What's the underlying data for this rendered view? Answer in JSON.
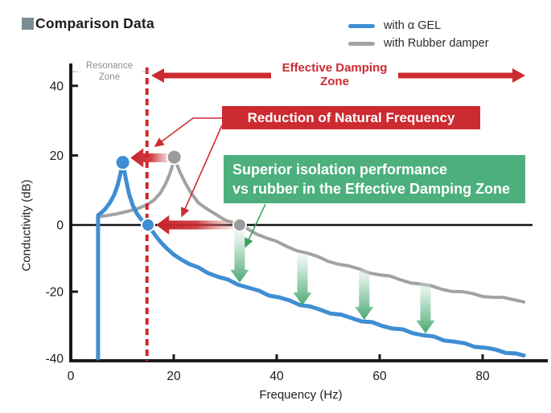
{
  "title": {
    "square_icon": "square-bullet-icon",
    "text": "Comparison Data"
  },
  "legend": {
    "items": [
      {
        "label": "with α GEL",
        "color": "#3e8ed3"
      },
      {
        "label": "with Rubber damper",
        "color": "#a2a2a2"
      }
    ]
  },
  "colors": {
    "red": "#cc2b31",
    "dashed_red": "#d0262c",
    "green_badge": "#4caf7c",
    "green_arrow_dark": "#4aa86e",
    "green_leader": "#3aa463",
    "blue": "#3e8ed3",
    "gray": "#a2a2a2",
    "gray_dot": "#9b9b9b",
    "title_square": "#7b8d94",
    "axis": "#1a1a1a"
  },
  "annotations": {
    "resonance_line1": "Resonance",
    "resonance_line2": "Zone",
    "resonance_arrow_left": "←",
    "resonance_arrow_right": "→",
    "effective_line1": "Effective Damping",
    "effective_line2": "Zone",
    "red_badge": "Reduction of Natural Frequency",
    "green_badge_line1": "Superior isolation performance",
    "green_badge_line2": "vs rubber in the Effective Damping Zone"
  },
  "chart_data": {
    "type": "line",
    "title": "Comparison Data",
    "xlabel": "Frequency (Hz)",
    "ylabel": "Conductivity (dB)",
    "xlim": [
      0,
      89
    ],
    "ylim": [
      -40,
      44
    ],
    "x_ticks": [
      0,
      20,
      40,
      60,
      80
    ],
    "y_ticks": [
      40,
      20,
      0,
      -20,
      -40
    ],
    "grid": false,
    "legend_position": "top-right",
    "resonance_boundary_hz": 14.8,
    "series": [
      {
        "name": "with α GEL",
        "color": "#3e8ed3",
        "points": [
          [
            5.3,
            -40
          ],
          [
            5.3,
            2.8
          ],
          [
            6,
            3.6
          ],
          [
            6.8,
            4.8
          ],
          [
            7.6,
            6.4
          ],
          [
            8.4,
            8.6
          ],
          [
            9.1,
            11.4
          ],
          [
            9.6,
            14.4
          ],
          [
            9.9,
            16.6
          ],
          [
            10.1,
            18
          ],
          [
            10.35,
            16
          ],
          [
            10.8,
            12.5
          ],
          [
            11.3,
            9
          ],
          [
            12,
            5.8
          ],
          [
            12.8,
            3.4
          ],
          [
            13.6,
            1.7
          ],
          [
            14.4,
            0.7
          ],
          [
            15,
            0
          ],
          [
            15.7,
            -1.5
          ],
          [
            16.5,
            -3.3
          ],
          [
            17.5,
            -5.2
          ],
          [
            18.7,
            -7.1
          ],
          [
            20,
            -8.9
          ],
          [
            21.5,
            -10.4
          ],
          [
            23,
            -11.7
          ],
          [
            24.8,
            -13
          ],
          [
            26.6,
            -14.2
          ],
          [
            28.5,
            -15.4
          ],
          [
            30.5,
            -16.6
          ],
          [
            32.5,
            -17.7
          ],
          [
            34.5,
            -18.8
          ],
          [
            36.5,
            -19.9
          ],
          [
            38.5,
            -20.9
          ],
          [
            40.5,
            -21.8
          ],
          [
            42.5,
            -22.8
          ],
          [
            44.5,
            -23.7
          ],
          [
            46.5,
            -24.6
          ],
          [
            48.5,
            -25.5
          ],
          [
            50.5,
            -26.3
          ],
          [
            52.5,
            -27.1
          ],
          [
            54.5,
            -27.9
          ],
          [
            56.5,
            -28.7
          ],
          [
            58.5,
            -29.4
          ],
          [
            60.5,
            -30.2
          ],
          [
            62.5,
            -30.9
          ],
          [
            64.5,
            -31.6
          ],
          [
            66.5,
            -32.3
          ],
          [
            68.5,
            -33
          ],
          [
            70.5,
            -33.7
          ],
          [
            72.5,
            -34.4
          ],
          [
            74.5,
            -35
          ],
          [
            76.5,
            -35.7
          ],
          [
            78.5,
            -36.3
          ],
          [
            80.5,
            -36.9
          ],
          [
            82.5,
            -37.5
          ],
          [
            84.5,
            -38.1
          ],
          [
            86.5,
            -38.7
          ],
          [
            88,
            -39.2
          ]
        ]
      },
      {
        "name": "with Rubber damper",
        "color": "#a2a2a2",
        "points": [
          [
            5.4,
            2.4
          ],
          [
            7,
            2.7
          ],
          [
            9,
            3.2
          ],
          [
            11,
            3.9
          ],
          [
            13,
            4.7
          ],
          [
            14.8,
            5.8
          ],
          [
            16.2,
            7.2
          ],
          [
            17.4,
            9.2
          ],
          [
            18.4,
            11.8
          ],
          [
            19.2,
            14.6
          ],
          [
            19.8,
            17.2
          ],
          [
            20.1,
            19.5
          ],
          [
            20.5,
            17.8
          ],
          [
            21.2,
            15.2
          ],
          [
            22.2,
            12.2
          ],
          [
            23.4,
            9.2
          ],
          [
            24.8,
            6.6
          ],
          [
            26.4,
            4.5
          ],
          [
            28,
            3
          ],
          [
            30,
            1.6
          ],
          [
            32,
            0.6
          ],
          [
            32.8,
            0.1
          ],
          [
            34,
            -0.9
          ],
          [
            36,
            -2.4
          ],
          [
            38,
            -3.9
          ],
          [
            40,
            -5.2
          ],
          [
            42,
            -6.4
          ],
          [
            44,
            -7.5
          ],
          [
            46,
            -8.6
          ],
          [
            48,
            -9.7
          ],
          [
            50,
            -10.7
          ],
          [
            52,
            -11.6
          ],
          [
            54,
            -12.5
          ],
          [
            56,
            -13.3
          ],
          [
            58,
            -14.1
          ],
          [
            60,
            -14.9
          ],
          [
            62,
            -15.6
          ],
          [
            64,
            -16.4
          ],
          [
            66,
            -17.1
          ],
          [
            68,
            -17.8
          ],
          [
            70,
            -18.5
          ],
          [
            72,
            -19.1
          ],
          [
            74,
            -19.7
          ],
          [
            76,
            -20.2
          ],
          [
            78,
            -20.7
          ],
          [
            80,
            -21.2
          ],
          [
            82,
            -21.6
          ],
          [
            84,
            -22
          ],
          [
            86,
            -22.4
          ],
          [
            88,
            -22.8
          ]
        ]
      }
    ],
    "markers": [
      {
        "series": 0,
        "hz": 10.1,
        "db": 18,
        "r": 9
      },
      {
        "series": 0,
        "hz": 15,
        "db": 0,
        "r": 8
      },
      {
        "series": 1,
        "hz": 20.1,
        "db": 19.5,
        "r": 9
      },
      {
        "series": 1,
        "hz": 32.8,
        "db": 0,
        "r": 8
      }
    ],
    "reduction_arrows": [
      {
        "tip_hz": 11.6,
        "tail_hz": 19.7,
        "db": 19.3
      },
      {
        "tip_hz": 16.6,
        "tail_hz": 32.2,
        "db": 0
      }
    ],
    "isolation_arrows": [
      {
        "hz": 32.8,
        "from_db": -1.7,
        "to_db": -17.3
      },
      {
        "hz": 45,
        "from_db": -8.9,
        "to_db": -24.1
      },
      {
        "hz": 57,
        "from_db": -13.3,
        "to_db": -28.4
      },
      {
        "hz": 68.9,
        "from_db": -17.3,
        "to_db": -32.5
      }
    ]
  }
}
